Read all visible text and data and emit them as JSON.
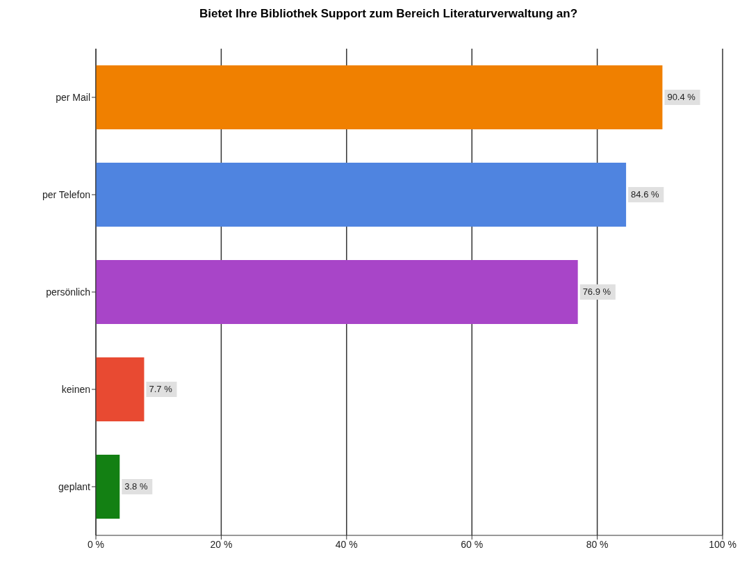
{
  "chart_data": {
    "type": "bar",
    "orientation": "horizontal",
    "title": "Bietet Ihre Bibliothek Support zum Bereich Literaturverwaltung an?",
    "categories": [
      "per Mail",
      "per Telefon",
      "persönlich",
      "keinen",
      "geplant"
    ],
    "values": [
      90.4,
      84.6,
      76.9,
      7.7,
      3.8
    ],
    "colors": [
      "#f08000",
      "#4f84e0",
      "#a845c8",
      "#e84a32",
      "#138013"
    ],
    "value_labels": [
      "90.4 %",
      "84.6 %",
      "76.9 %",
      "7.7 %",
      "3.8 %"
    ],
    "xlim": [
      0,
      100
    ],
    "xticks": [
      {
        "value": 0,
        "label": "0 %"
      },
      {
        "value": 20,
        "label": "20 %"
      },
      {
        "value": 40,
        "label": "40 %"
      },
      {
        "value": 60,
        "label": "60 %"
      },
      {
        "value": 80,
        "label": "80 %"
      },
      {
        "value": 100,
        "label": "100 %"
      }
    ],
    "grid": "x"
  }
}
